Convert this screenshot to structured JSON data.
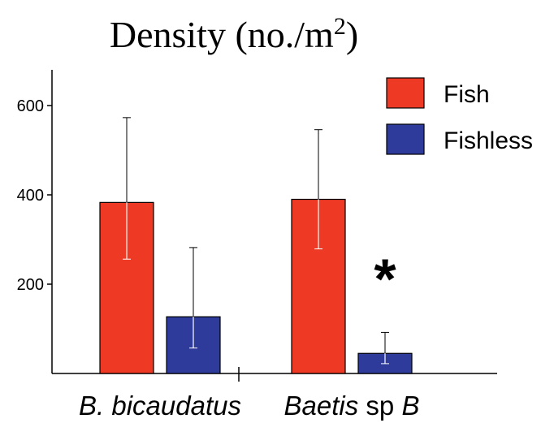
{
  "chart_data": {
    "type": "bar",
    "title": {
      "main": "Density (no./m",
      "superscript": "2",
      "close": ")"
    },
    "xlabel": "",
    "ylabel": "",
    "ylim": [
      0,
      680
    ],
    "yticks": [
      200,
      400,
      600
    ],
    "grid": false,
    "legend_position": "top-right",
    "categories": [
      {
        "parts": [
          {
            "text": "B. bicaudatus",
            "italic": true
          }
        ]
      },
      {
        "parts": [
          {
            "text": "Baetis",
            "italic": true
          },
          {
            "text": " sp ",
            "italic": false
          },
          {
            "text": "B",
            "italic": true
          }
        ]
      }
    ],
    "series": [
      {
        "name": "Fish",
        "color": "#ee3a24",
        "values": [
          383,
          390
        ],
        "err_low": [
          256,
          279
        ],
        "err_high": [
          573,
          546
        ]
      },
      {
        "name": "Fishless",
        "color": "#2e3b9a",
        "values": [
          127,
          45
        ],
        "err_low": [
          57,
          22
        ],
        "err_high": [
          282,
          92
        ]
      }
    ],
    "annotations": [
      {
        "text": "*",
        "category_index": 1,
        "series_index": 1
      }
    ]
  }
}
